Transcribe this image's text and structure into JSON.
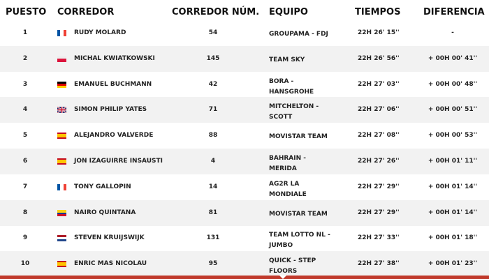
{
  "headers": {
    "pos": "PUESTO",
    "rider": "CORREDOR",
    "num": "CORREDOR NÚM.",
    "team": "EQUIPO",
    "time": "TIEMPOS",
    "diff": "DIFERENCIA"
  },
  "rows": [
    {
      "pos": "1",
      "flag": "france",
      "name": "RUDY MOLARD",
      "num": "54",
      "team": "GROUPAMA - FDJ",
      "time": "22H 26' 15''",
      "diff": "-"
    },
    {
      "pos": "2",
      "flag": "poland",
      "name": "MICHAL KWIATKOWSKI",
      "num": "145",
      "team": "TEAM SKY",
      "time": "22H 26' 56''",
      "diff": "+ 00H 00' 41''"
    },
    {
      "pos": "3",
      "flag": "germany",
      "name": "EMANUEL BUCHMANN",
      "num": "42",
      "team": "BORA - HANSGROHE",
      "time": "22H 27' 03''",
      "diff": "+ 00H 00' 48''"
    },
    {
      "pos": "4",
      "flag": "uk",
      "name": "SIMON PHILIP YATES",
      "num": "71",
      "team": "MITCHELTON - SCOTT",
      "time": "22H 27' 06''",
      "diff": "+ 00H 00' 51''"
    },
    {
      "pos": "5",
      "flag": "spain",
      "name": "ALEJANDRO VALVERDE",
      "num": "88",
      "team": "MOVISTAR TEAM",
      "time": "22H 27' 08''",
      "diff": "+ 00H 00' 53''"
    },
    {
      "pos": "6",
      "flag": "spain",
      "name": "JON IZAGUIRRE INSAUSTI",
      "num": "4",
      "team": "BAHRAIN - MERIDA",
      "time": "22H 27' 26''",
      "diff": "+ 00H 01' 11''"
    },
    {
      "pos": "7",
      "flag": "france",
      "name": "TONY GALLOPIN",
      "num": "14",
      "team": "AG2R LA MONDIALE",
      "time": "22H 27' 29''",
      "diff": "+ 00H 01' 14''"
    },
    {
      "pos": "8",
      "flag": "colombia",
      "name": "NAIRO QUINTANA",
      "num": "81",
      "team": "MOVISTAR TEAM",
      "time": "22H 27' 29''",
      "diff": "+ 00H 01' 14''"
    },
    {
      "pos": "9",
      "flag": "netherlands",
      "name": "STEVEN KRUIJSWIJK",
      "num": "131",
      "team": "TEAM LOTTO NL - JUMBO",
      "time": "22H 27' 33''",
      "diff": "+ 00H 01' 18''"
    },
    {
      "pos": "10",
      "flag": "spain",
      "name": "ENRIC MAS NICOLAU",
      "num": "95",
      "team": "QUICK - STEP FLOORS",
      "time": "22H 27' 38''",
      "diff": "+ 00H 01' 23''"
    }
  ],
  "colors": {
    "stripe": "#f2f2f2",
    "accent": "#c0392b"
  }
}
